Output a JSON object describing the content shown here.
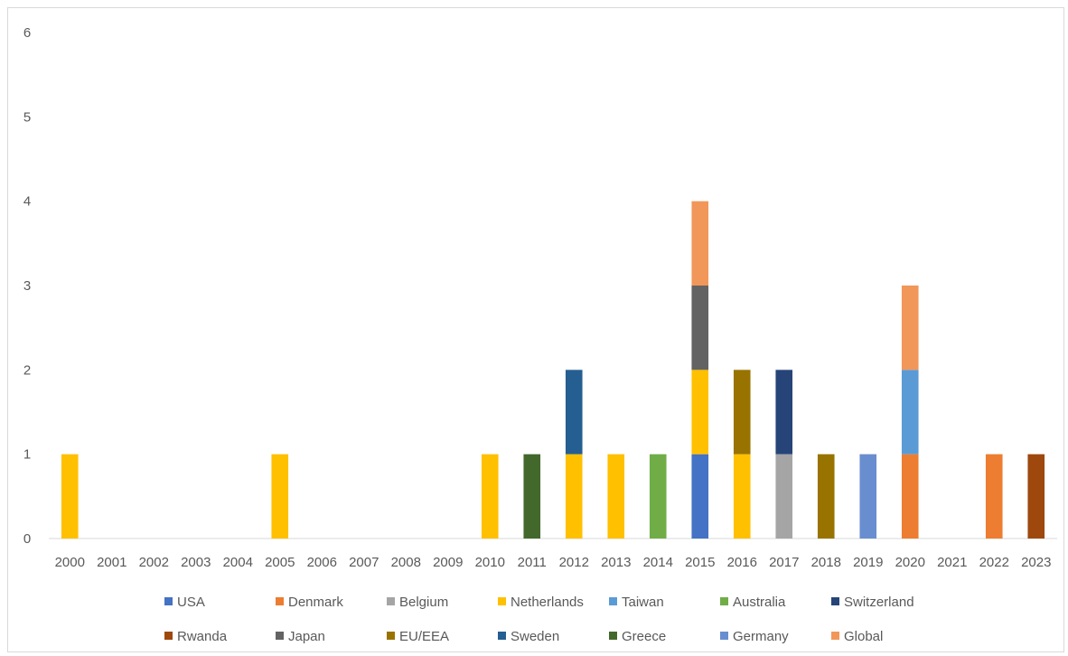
{
  "chart_data": {
    "type": "bar",
    "stacked": true,
    "title": "",
    "xlabel": "",
    "ylabel": "",
    "ylim": [
      0,
      6
    ],
    "yticks": [
      0,
      1,
      2,
      3,
      4,
      5,
      6
    ],
    "grid": false,
    "legend_position": "bottom",
    "categories": [
      "2000",
      "2001",
      "2002",
      "2003",
      "2004",
      "2005",
      "2006",
      "2007",
      "2008",
      "2009",
      "2010",
      "2011",
      "2012",
      "2013",
      "2014",
      "2015",
      "2016",
      "2017",
      "2018",
      "2019",
      "2020",
      "2021",
      "2022",
      "2023"
    ],
    "series": [
      {
        "name": "USA",
        "color": "#4472C4",
        "values": [
          0,
          0,
          0,
          0,
          0,
          0,
          0,
          0,
          0,
          0,
          0,
          0,
          0,
          0,
          0,
          1,
          0,
          0,
          0,
          0,
          0,
          0,
          0,
          0
        ]
      },
      {
        "name": "Denmark",
        "color": "#ED7D31",
        "values": [
          0,
          0,
          0,
          0,
          0,
          0,
          0,
          0,
          0,
          0,
          0,
          0,
          0,
          0,
          0,
          0,
          0,
          0,
          0,
          0,
          1,
          0,
          1,
          0
        ]
      },
      {
        "name": "Belgium",
        "color": "#A5A5A5",
        "values": [
          0,
          0,
          0,
          0,
          0,
          0,
          0,
          0,
          0,
          0,
          0,
          0,
          0,
          0,
          0,
          0,
          0,
          1,
          0,
          0,
          0,
          0,
          0,
          0
        ]
      },
      {
        "name": "Netherlands",
        "color": "#FFC000",
        "values": [
          1,
          0,
          0,
          0,
          0,
          1,
          0,
          0,
          0,
          0,
          1,
          0,
          1,
          1,
          0,
          1,
          1,
          0,
          0,
          0,
          0,
          0,
          0,
          0
        ]
      },
      {
        "name": "Taiwan",
        "color": "#5B9BD5",
        "values": [
          0,
          0,
          0,
          0,
          0,
          0,
          0,
          0,
          0,
          0,
          0,
          0,
          0,
          0,
          0,
          0,
          0,
          0,
          0,
          0,
          1,
          0,
          0,
          0
        ]
      },
      {
        "name": "Australia",
        "color": "#70AD47",
        "values": [
          0,
          0,
          0,
          0,
          0,
          0,
          0,
          0,
          0,
          0,
          0,
          0,
          0,
          0,
          1,
          0,
          0,
          0,
          0,
          0,
          0,
          0,
          0,
          0
        ]
      },
      {
        "name": "Switzerland",
        "color": "#264478",
        "values": [
          0,
          0,
          0,
          0,
          0,
          0,
          0,
          0,
          0,
          0,
          0,
          0,
          0,
          0,
          0,
          0,
          0,
          1,
          0,
          0,
          0,
          0,
          0,
          0
        ]
      },
      {
        "name": "Rwanda",
        "color": "#9E480E",
        "values": [
          0,
          0,
          0,
          0,
          0,
          0,
          0,
          0,
          0,
          0,
          0,
          0,
          0,
          0,
          0,
          0,
          0,
          0,
          0,
          0,
          0,
          0,
          0,
          1
        ]
      },
      {
        "name": "Japan",
        "color": "#636363",
        "values": [
          0,
          0,
          0,
          0,
          0,
          0,
          0,
          0,
          0,
          0,
          0,
          0,
          0,
          0,
          0,
          1,
          0,
          0,
          0,
          0,
          0,
          0,
          0,
          0
        ]
      },
      {
        "name": "EU/EEA",
        "color": "#997300",
        "values": [
          0,
          0,
          0,
          0,
          0,
          0,
          0,
          0,
          0,
          0,
          0,
          0,
          0,
          0,
          0,
          0,
          1,
          0,
          1,
          0,
          0,
          0,
          0,
          0
        ]
      },
      {
        "name": "Sweden",
        "color": "#255E91",
        "values": [
          0,
          0,
          0,
          0,
          0,
          0,
          0,
          0,
          0,
          0,
          0,
          0,
          1,
          0,
          0,
          0,
          0,
          0,
          0,
          0,
          0,
          0,
          0,
          0
        ]
      },
      {
        "name": "Greece",
        "color": "#43682B",
        "values": [
          0,
          0,
          0,
          0,
          0,
          0,
          0,
          0,
          0,
          0,
          0,
          1,
          0,
          0,
          0,
          0,
          0,
          0,
          0,
          0,
          0,
          0,
          0,
          0
        ]
      },
      {
        "name": "Germany",
        "color": "#698ED0",
        "values": [
          0,
          0,
          0,
          0,
          0,
          0,
          0,
          0,
          0,
          0,
          0,
          0,
          0,
          0,
          0,
          0,
          0,
          0,
          0,
          1,
          0,
          0,
          0,
          0
        ]
      },
      {
        "name": "Global",
        "color": "#F1975A",
        "values": [
          0,
          0,
          0,
          0,
          0,
          0,
          0,
          0,
          0,
          0,
          0,
          0,
          0,
          0,
          0,
          1,
          0,
          0,
          0,
          0,
          1,
          0,
          0,
          0
        ]
      }
    ]
  }
}
